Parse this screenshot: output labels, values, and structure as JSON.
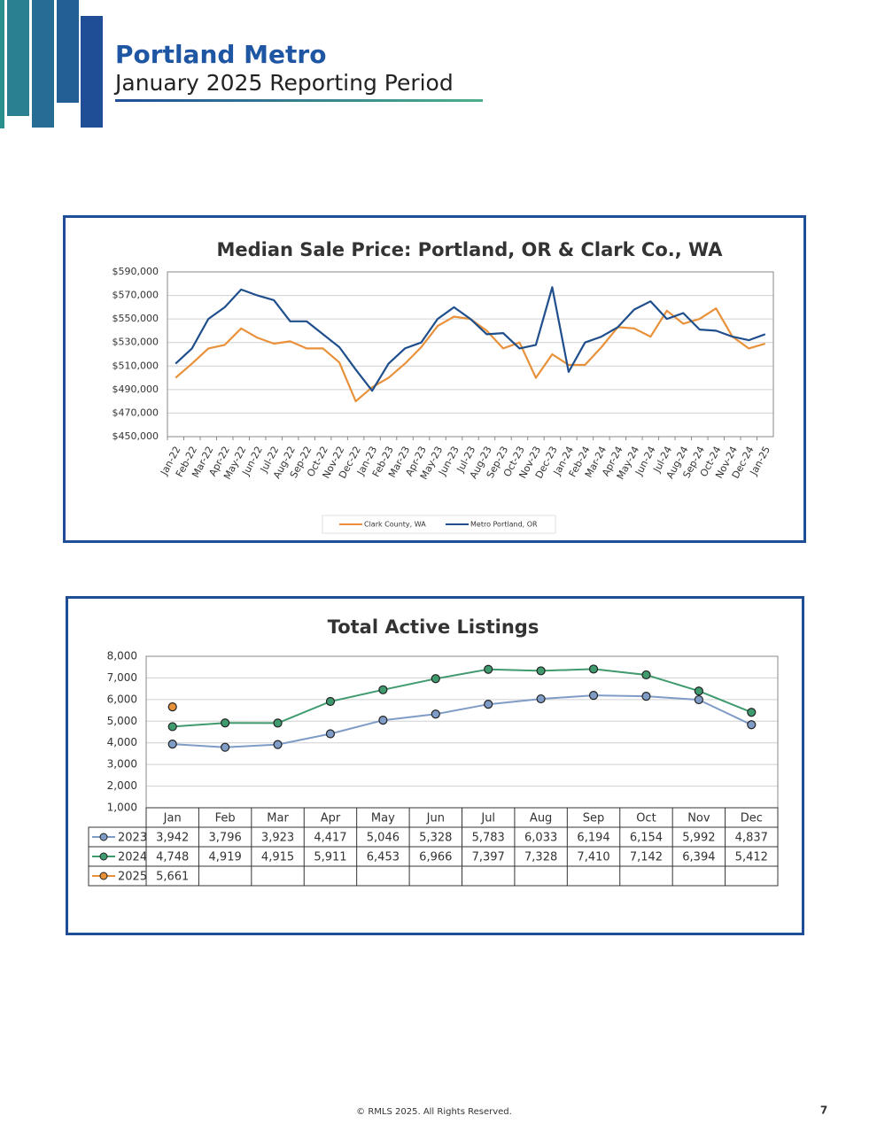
{
  "header": {
    "title": "Portland Metro",
    "subtitle": "January 2025 Reporting Period"
  },
  "chart_data": [
    {
      "type": "line",
      "title": "Median Sale Price: Portland, OR & Clark Co., WA",
      "categories": [
        "Jan-22",
        "Feb-22",
        "Mar-22",
        "Apr-22",
        "May-22",
        "Jun-22",
        "Jul-22",
        "Aug-22",
        "Sep-22",
        "Oct-22",
        "Nov-22",
        "Dec-22",
        "Jan-23",
        "Feb-23",
        "Mar-23",
        "Apr-23",
        "May-23",
        "Jun-23",
        "Jul-23",
        "Aug-23",
        "Sep-23",
        "Oct-23",
        "Nov-23",
        "Dec-23",
        "Jan-24",
        "Feb-24",
        "Mar-24",
        "Apr-24",
        "May-24",
        "Jun-24",
        "Jul-24",
        "Aug-24",
        "Sep-24",
        "Oct-24",
        "Nov-24",
        "Dec-24",
        "Jan-25"
      ],
      "series": [
        {
          "name": "Clark County, WA",
          "color": "#e8913a",
          "values": [
            500000,
            512000,
            525000,
            528000,
            542000,
            534000,
            529000,
            531000,
            525000,
            525000,
            513000,
            480000,
            492000,
            500000,
            512000,
            526000,
            544000,
            552000,
            550000,
            540000,
            525000,
            530000,
            500000,
            520000,
            511000,
            511000,
            526000,
            543000,
            542000,
            535000,
            557000,
            546000,
            550000,
            559000,
            535000,
            525000,
            529000
          ]
        },
        {
          "name": "Metro Portland, OR",
          "color": "#1f4e8c",
          "values": [
            512000,
            525000,
            550000,
            560000,
            575000,
            570000,
            566000,
            548000,
            548000,
            537000,
            526000,
            507000,
            489000,
            512000,
            525000,
            530000,
            550000,
            560000,
            550000,
            537000,
            538000,
            525000,
            528000,
            577000,
            505000,
            530000,
            535000,
            543000,
            558000,
            565000,
            550000,
            555000,
            541000,
            540000,
            535000,
            532000,
            537000
          ]
        }
      ],
      "ylim": [
        450000,
        590000
      ],
      "yticks": [
        {
          "value": 450000,
          "label": "$450,000"
        },
        {
          "value": 470000,
          "label": "$470,000"
        },
        {
          "value": 490000,
          "label": "$490,000"
        },
        {
          "value": 510000,
          "label": "$510,000"
        },
        {
          "value": 530000,
          "label": "$530,000"
        },
        {
          "value": 550000,
          "label": "$550,000"
        },
        {
          "value": 570000,
          "label": "$570,000"
        },
        {
          "value": 590000,
          "label": "$590,000"
        }
      ],
      "grid": true,
      "legend": "bottom"
    },
    {
      "type": "line",
      "title": "Total Active Listings",
      "categories": [
        "Jan",
        "Feb",
        "Mar",
        "Apr",
        "May",
        "Jun",
        "Jul",
        "Aug",
        "Sep",
        "Oct",
        "Nov",
        "Dec"
      ],
      "series": [
        {
          "name": "2023",
          "color": "#7f9cc6",
          "values": [
            3942,
            3796,
            3923,
            4417,
            5046,
            5328,
            5783,
            6033,
            6194,
            6154,
            5992,
            4837
          ],
          "value_labels": [
            "3,942",
            "3,796",
            "3,923",
            "4,417",
            "5,046",
            "5,328",
            "5,783",
            "6,033",
            "6,194",
            "6,154",
            "5,992",
            "4,837"
          ]
        },
        {
          "name": "2024",
          "color": "#3f9a6e",
          "values": [
            4748,
            4919,
            4915,
            5911,
            6453,
            6966,
            7397,
            7328,
            7410,
            7142,
            6394,
            5412
          ],
          "value_labels": [
            "4,748",
            "4,919",
            "4,915",
            "5,911",
            "6,453",
            "6,966",
            "7,397",
            "7,328",
            "7,410",
            "7,142",
            "6,394",
            "5,412"
          ]
        },
        {
          "name": "2025",
          "color": "#e8913a",
          "values": [
            5661,
            null,
            null,
            null,
            null,
            null,
            null,
            null,
            null,
            null,
            null,
            null
          ],
          "value_labels": [
            "5,661",
            null,
            null,
            null,
            null,
            null,
            null,
            null,
            null,
            null,
            null,
            null
          ]
        }
      ],
      "ylim": [
        1000,
        8000
      ],
      "yticks": [
        {
          "value": 1000,
          "label": "1,000"
        },
        {
          "value": 2000,
          "label": "2,000"
        },
        {
          "value": 3000,
          "label": "3,000"
        },
        {
          "value": 4000,
          "label": "4,000"
        },
        {
          "value": 5000,
          "label": "5,000"
        },
        {
          "value": 6000,
          "label": "6,000"
        },
        {
          "value": 7000,
          "label": "7,000"
        },
        {
          "value": 8000,
          "label": "8,000"
        }
      ],
      "grid": true,
      "legend": "table"
    }
  ],
  "footer": {
    "copyright": "© RMLS 2025. All Rights Reserved.",
    "page": "7"
  }
}
